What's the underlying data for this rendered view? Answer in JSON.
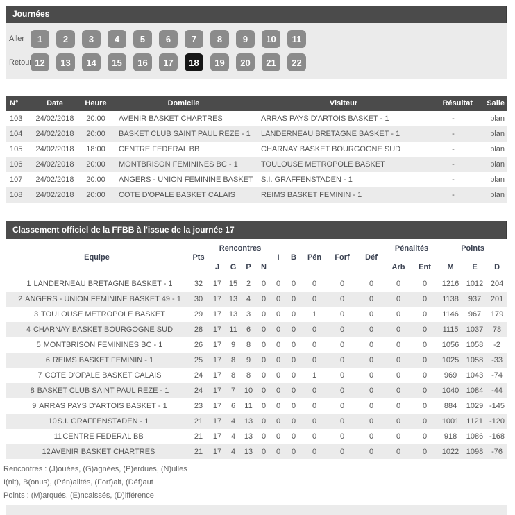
{
  "colors": {
    "bar_bg": "#4b4b4b",
    "panel_bg": "#ebebeb",
    "button_bg": "#8b8b8b",
    "button_selected_bg": "#161616",
    "alt_row_bg": "#ebebeb",
    "group_rule_red": "#cc2222"
  },
  "journees": {
    "title": "Journées",
    "selected_day": "18",
    "rows": [
      {
        "label": "Aller",
        "days": [
          "1",
          "2",
          "3",
          "4",
          "5",
          "6",
          "7",
          "8",
          "9",
          "10",
          "11"
        ]
      },
      {
        "label": "Retour",
        "days": [
          "12",
          "13",
          "14",
          "15",
          "16",
          "17",
          "18",
          "19",
          "20",
          "21",
          "22"
        ]
      }
    ]
  },
  "results": {
    "columns": [
      "N°",
      "Date",
      "Heure",
      "Domicile",
      "Visiteur",
      "Résultat",
      "Salle"
    ],
    "rows": [
      [
        "103",
        "24/02/2018",
        "20:00",
        "AVENIR BASKET CHARTRES",
        "ARRAS PAYS D'ARTOIS BASKET - 1",
        "-",
        "plan"
      ],
      [
        "104",
        "24/02/2018",
        "20:00",
        "BASKET CLUB SAINT PAUL REZE - 1",
        "LANDERNEAU BRETAGNE BASKET - 1",
        "-",
        "plan"
      ],
      [
        "105",
        "24/02/2018",
        "18:00",
        "CENTRE FEDERAL BB",
        "CHARNAY BASKET BOURGOGNE SUD",
        "-",
        "plan"
      ],
      [
        "106",
        "24/02/2018",
        "20:00",
        "MONTBRISON FEMININES BC - 1",
        "TOULOUSE METROPOLE BASKET",
        "-",
        "plan"
      ],
      [
        "107",
        "24/02/2018",
        "20:00",
        "ANGERS - UNION FEMININE BASKET 49 - 1",
        "S.I. GRAFFENSTADEN - 1",
        "-",
        "plan"
      ],
      [
        "108",
        "24/02/2018",
        "20:00",
        "COTE D'OPALE BASKET CALAIS",
        "REIMS BASKET FEMININ - 1",
        "-",
        "plan"
      ]
    ]
  },
  "standings": {
    "title": "Classement officiel de la FFBB à l'issue de la journée 17",
    "headers": {
      "equipe": "Equipe",
      "pts": "Pts",
      "rencontres": "Rencontres",
      "j": "J",
      "g": "G",
      "p": "P",
      "n": "N",
      "i": "I",
      "b": "B",
      "pen": "Pén",
      "forf": "Forf",
      "def": "Déf",
      "penalites": "Pénalités",
      "arb": "Arb",
      "ent": "Ent",
      "points": "Points",
      "m": "M",
      "e": "E",
      "d": "D"
    },
    "rows": [
      {
        "rank": "1",
        "team": "LANDERNEAU BRETAGNE BASKET - 1",
        "values": [
          "32",
          "17",
          "15",
          "2",
          "0",
          "0",
          "0",
          "0",
          "0",
          "0",
          "0",
          "0",
          "1216",
          "1012",
          "204"
        ]
      },
      {
        "rank": "2",
        "team": "ANGERS - UNION FEMININE BASKET 49 - 1",
        "values": [
          "30",
          "17",
          "13",
          "4",
          "0",
          "0",
          "0",
          "0",
          "0",
          "0",
          "0",
          "0",
          "1138",
          "937",
          "201"
        ]
      },
      {
        "rank": "3",
        "team": "TOULOUSE METROPOLE BASKET",
        "values": [
          "29",
          "17",
          "13",
          "3",
          "0",
          "0",
          "0",
          "1",
          "0",
          "0",
          "0",
          "0",
          "1146",
          "967",
          "179"
        ]
      },
      {
        "rank": "4",
        "team": "CHARNAY BASKET BOURGOGNE SUD",
        "values": [
          "28",
          "17",
          "11",
          "6",
          "0",
          "0",
          "0",
          "0",
          "0",
          "0",
          "0",
          "0",
          "1115",
          "1037",
          "78"
        ]
      },
      {
        "rank": "5",
        "team": "MONTBRISON FEMININES BC - 1",
        "values": [
          "26",
          "17",
          "9",
          "8",
          "0",
          "0",
          "0",
          "0",
          "0",
          "0",
          "0",
          "0",
          "1056",
          "1058",
          "-2"
        ]
      },
      {
        "rank": "6",
        "team": "REIMS BASKET FEMININ - 1",
        "values": [
          "25",
          "17",
          "8",
          "9",
          "0",
          "0",
          "0",
          "0",
          "0",
          "0",
          "0",
          "0",
          "1025",
          "1058",
          "-33"
        ]
      },
      {
        "rank": "7",
        "team": "COTE D'OPALE BASKET CALAIS",
        "values": [
          "24",
          "17",
          "8",
          "8",
          "0",
          "0",
          "0",
          "1",
          "0",
          "0",
          "0",
          "0",
          "969",
          "1043",
          "-74"
        ]
      },
      {
        "rank": "8",
        "team": "BASKET CLUB SAINT PAUL REZE - 1",
        "values": [
          "24",
          "17",
          "7",
          "10",
          "0",
          "0",
          "0",
          "0",
          "0",
          "0",
          "0",
          "0",
          "1040",
          "1084",
          "-44"
        ]
      },
      {
        "rank": "9",
        "team": "ARRAS PAYS D'ARTOIS BASKET - 1",
        "values": [
          "23",
          "17",
          "6",
          "11",
          "0",
          "0",
          "0",
          "0",
          "0",
          "0",
          "0",
          "0",
          "884",
          "1029",
          "-145"
        ]
      },
      {
        "rank": "10",
        "team": "S.I. GRAFFENSTADEN - 1",
        "values": [
          "21",
          "17",
          "4",
          "13",
          "0",
          "0",
          "0",
          "0",
          "0",
          "0",
          "0",
          "0",
          "1001",
          "1121",
          "-120"
        ]
      },
      {
        "rank": "11",
        "team": "CENTRE FEDERAL BB",
        "values": [
          "21",
          "17",
          "4",
          "13",
          "0",
          "0",
          "0",
          "0",
          "0",
          "0",
          "0",
          "0",
          "918",
          "1086",
          "-168"
        ]
      },
      {
        "rank": "12",
        "team": "AVENIR BASKET CHARTRES",
        "values": [
          "21",
          "17",
          "4",
          "13",
          "0",
          "0",
          "0",
          "0",
          "0",
          "0",
          "0",
          "0",
          "1022",
          "1098",
          "-76"
        ]
      }
    ],
    "legend": [
      "Rencontres : (J)ouées, (G)agnées, (P)erdues, (N)ulles",
      "I(nit), B(onus), (Pén)alités, (Forf)ait, (Déf)aut",
      "Points : (M)arqués, (E)ncaissés, (D)ifférence"
    ]
  }
}
